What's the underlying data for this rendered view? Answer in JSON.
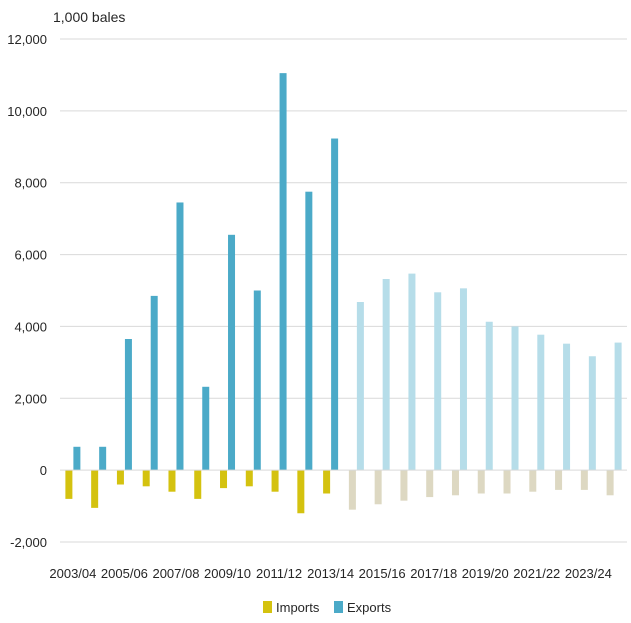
{
  "chart_data": {
    "type": "bar",
    "unit_label": "1,000 bales",
    "categories": [
      "2003/04",
      "2004/05",
      "2005/06",
      "2006/07",
      "2007/08",
      "2008/09",
      "2009/10",
      "2010/11",
      "2011/12",
      "2012/13",
      "2013/14",
      "2014/15",
      "2015/16",
      "2016/17",
      "2017/18",
      "2018/19",
      "2019/20",
      "2020/21",
      "2021/22",
      "2022/23",
      "2023/24",
      "2024/25"
    ],
    "x_tick_labels": [
      "2003/04",
      "2005/06",
      "2007/08",
      "2009/10",
      "2011/12",
      "2013/14",
      "2015/16",
      "2017/18",
      "2019/20",
      "2021/22",
      "2023/24"
    ],
    "series": [
      {
        "name": "Imports",
        "color": "#D4C20F",
        "projected_color": "#DDD8C2",
        "values": [
          -800,
          -1050,
          -400,
          -450,
          -600,
          -800,
          -500,
          -450,
          -600,
          -1200,
          -650,
          -1100,
          -950,
          -850,
          -750,
          -700,
          -650,
          -650,
          -600,
          -550,
          -550,
          -700
        ]
      },
      {
        "name": "Exports",
        "color": "#4BAAC8",
        "projected_color": "#B6DDE9",
        "values": [
          650,
          650,
          3650,
          4850,
          7450,
          2320,
          6550,
          5000,
          11050,
          7750,
          9230,
          4680,
          5320,
          5470,
          4950,
          5060,
          4130,
          4000,
          3770,
          3520,
          3170,
          3550
        ]
      }
    ],
    "projected_from_index": 11,
    "ylim": [
      -2000,
      12000
    ],
    "y_ticks": [
      "12,000",
      "10,000",
      "8,000",
      "6,000",
      "4,000",
      "2,000",
      "0",
      "-2,000"
    ],
    "legend_position": "bottom",
    "grid": "horizontal"
  }
}
